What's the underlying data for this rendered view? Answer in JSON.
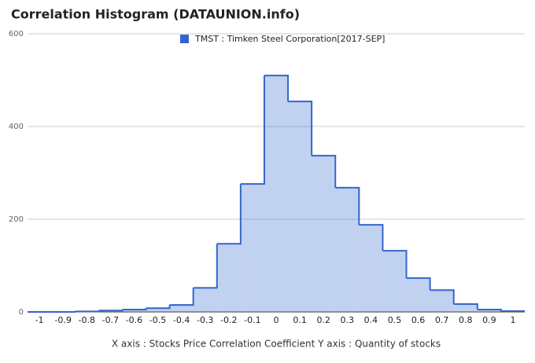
{
  "chart_data": {
    "type": "histogram",
    "title": "Correlation Histogram (DATAUNION.info)",
    "xlabel": "X axis : Stocks Price Correlation Coefficient  Y axis : Quantity of stocks",
    "bins": [
      -1.05,
      -0.95,
      -0.85,
      -0.75,
      -0.65,
      -0.55,
      -0.45,
      -0.35,
      -0.25,
      -0.15,
      -0.05,
      0.05,
      0.15,
      0.25,
      0.35,
      0.45,
      0.55,
      0.65,
      0.75,
      0.85,
      0.95,
      1.05
    ],
    "series": [
      {
        "name": "TMST : Timken Steel Corporation[2017-SEP]",
        "color": "#3366cc",
        "values": [
          0,
          0,
          1,
          3,
          5,
          8,
          15,
          52,
          147,
          276,
          510,
          454,
          337,
          268,
          188,
          132,
          73,
          47,
          17,
          5,
          2
        ]
      }
    ],
    "xlim": [
      -1.05,
      1.05
    ],
    "xticks": [
      -1,
      -0.9,
      -0.8,
      -0.7,
      -0.6,
      -0.5,
      -0.4,
      -0.3,
      -0.2,
      -0.1,
      0,
      0.1,
      0.2,
      0.3,
      0.4,
      0.5,
      0.6,
      0.7,
      0.8,
      0.9,
      1
    ],
    "ylim": [
      0,
      600
    ],
    "yticks": [
      0,
      200,
      400,
      600
    ],
    "grid": true
  }
}
